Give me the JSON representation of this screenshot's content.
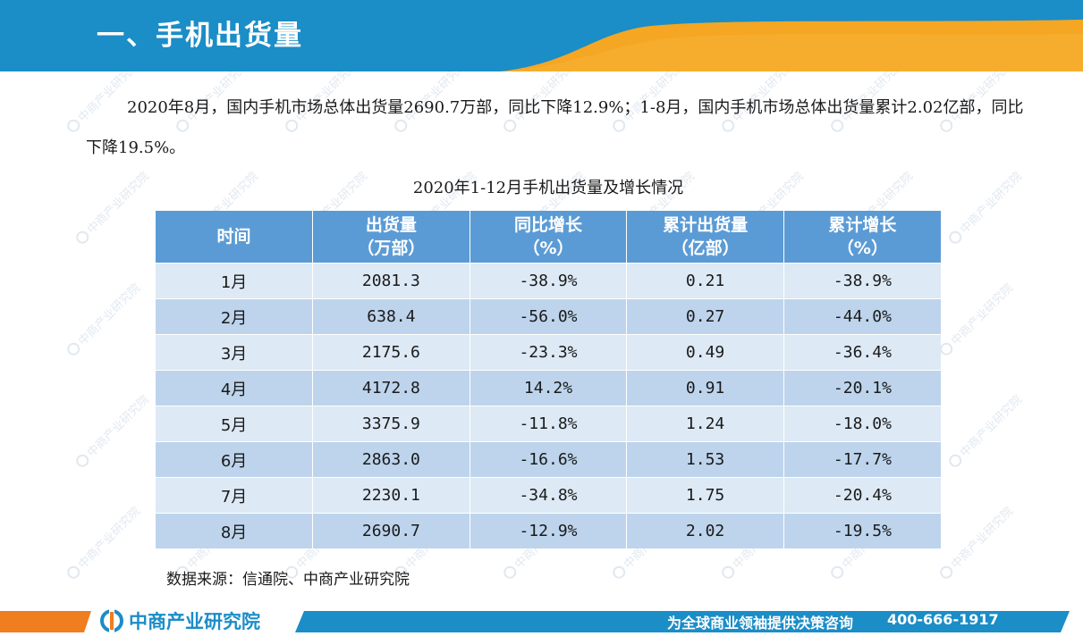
{
  "header": {
    "title": "一、手机出货量"
  },
  "intro": {
    "text": "2020年8月，国内手机市场总体出货量2690.7万部，同比下降12.9%；1-8月，国内手机市场总体出货量累计2.02亿部，同比下降19.5%。"
  },
  "table": {
    "title": "2020年1-12月手机出货量及增长情况",
    "headers": [
      {
        "line1": "时间",
        "line2": ""
      },
      {
        "line1": "出货量",
        "line2": "（万部）"
      },
      {
        "line1": "同比增长",
        "line2": "（%）"
      },
      {
        "line1": "累计出货量",
        "line2": "（亿部）"
      },
      {
        "line1": "累计增长",
        "line2": "（%）"
      }
    ],
    "rows": [
      [
        "1月",
        "2081.3",
        "-38.9%",
        "0.21",
        "-38.9%"
      ],
      [
        "2月",
        "638.4",
        "-56.0%",
        "0.27",
        "-44.0%"
      ],
      [
        "3月",
        "2175.6",
        "-23.3%",
        "0.49",
        "-36.4%"
      ],
      [
        "4月",
        "4172.8",
        "14.2%",
        "0.91",
        "-20.1%"
      ],
      [
        "5月",
        "3375.9",
        "-11.8%",
        "1.24",
        "-18.0%"
      ],
      [
        "6月",
        "2863.0",
        "-16.6%",
        "1.53",
        "-17.7%"
      ],
      [
        "7月",
        "2230.1",
        "-34.8%",
        "1.75",
        "-20.4%"
      ],
      [
        "8月",
        "2690.7",
        "-12.9%",
        "2.02",
        "-19.5%"
      ]
    ]
  },
  "source": "数据来源：信通院、中商产业研究院",
  "footer": {
    "logo_text": "中商产业研究院",
    "slogan": "为全球商业领袖提供决策咨询",
    "phone": "400-666-1917"
  },
  "watermark_text": "中商产业研究院",
  "colors": {
    "header_blue": "#1b8dc7",
    "accent_orange": "#f5a623",
    "table_header": "#5b9bd5",
    "row_light": "#dde9f5",
    "row_dark": "#bdd4ec"
  }
}
